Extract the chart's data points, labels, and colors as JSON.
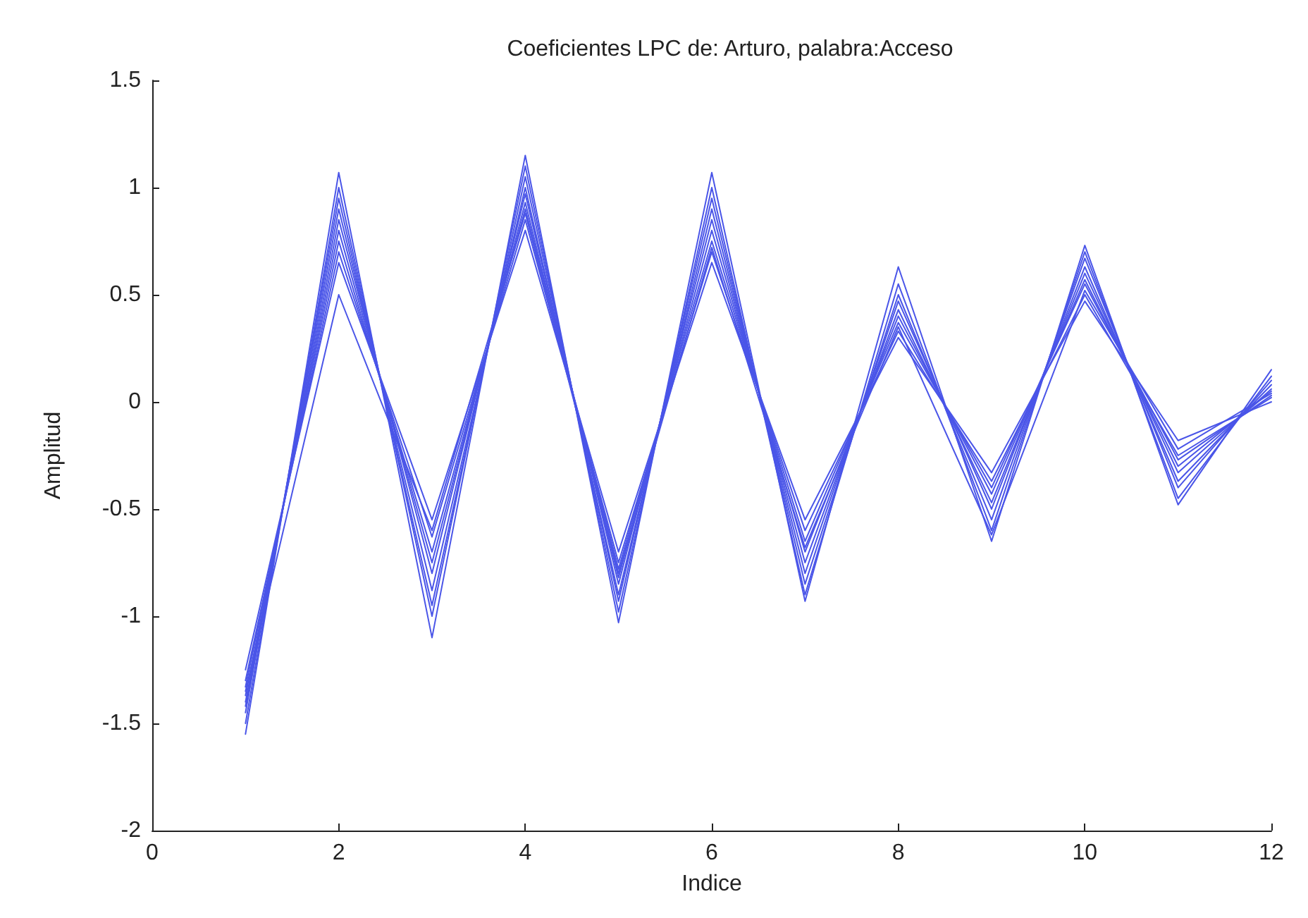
{
  "chart_data": {
    "type": "line",
    "title": "Coeficientes LPC de: Arturo, palabra:Acceso",
    "xlabel": "Indice",
    "ylabel": "Amplitud",
    "x": [
      1,
      2,
      3,
      4,
      5,
      6,
      7,
      8,
      9,
      10,
      11,
      12
    ],
    "xlim": [
      0,
      12
    ],
    "xticks": [
      0,
      2,
      4,
      6,
      8,
      10,
      12
    ],
    "ylim": [
      -2,
      1.5
    ],
    "yticks": [
      -2,
      -1.5,
      -1,
      -0.5,
      0,
      0.5,
      1,
      1.5
    ],
    "grid": false,
    "marker": "none",
    "line_style": "solid",
    "series": [
      {
        "color": "#4a55e8",
        "values": [
          -1.55,
          1.07,
          -1.1,
          1.15,
          -1.03,
          1.07,
          -0.93,
          0.63,
          -0.65,
          0.73,
          -0.48,
          0.15
        ]
      },
      {
        "color": "#4a55e8",
        "values": [
          -1.5,
          1.0,
          -1.0,
          1.1,
          -0.98,
          1.0,
          -0.9,
          0.55,
          -0.6,
          0.7,
          -0.45,
          0.12
        ]
      },
      {
        "color": "#4a55e8",
        "values": [
          -1.45,
          0.95,
          -0.95,
          1.05,
          -0.93,
          0.95,
          -0.85,
          0.5,
          -0.55,
          0.67,
          -0.4,
          0.1
        ]
      },
      {
        "color": "#4a55e8",
        "values": [
          -1.42,
          0.9,
          -0.88,
          1.0,
          -0.9,
          0.9,
          -0.8,
          0.47,
          -0.5,
          0.63,
          -0.37,
          0.08
        ]
      },
      {
        "color": "#4a55e8",
        "values": [
          -1.4,
          0.85,
          -0.8,
          0.97,
          -0.85,
          0.85,
          -0.75,
          0.43,
          -0.47,
          0.6,
          -0.33,
          0.06
        ]
      },
      {
        "color": "#4a55e8",
        "values": [
          -1.37,
          0.8,
          -0.75,
          0.93,
          -0.82,
          0.8,
          -0.7,
          0.4,
          -0.43,
          0.57,
          -0.3,
          0.05
        ]
      },
      {
        "color": "#4a55e8",
        "values": [
          -1.33,
          0.75,
          -0.7,
          0.9,
          -0.78,
          0.75,
          -0.65,
          0.37,
          -0.4,
          0.55,
          -0.27,
          0.03
        ]
      },
      {
        "color": "#4a55e8",
        "values": [
          -1.3,
          0.7,
          -0.63,
          0.85,
          -0.75,
          0.7,
          -0.6,
          0.33,
          -0.37,
          0.5,
          -0.25,
          0.02
        ]
      },
      {
        "color": "#4a55e8",
        "values": [
          -1.25,
          0.65,
          -0.55,
          0.8,
          -0.7,
          0.65,
          -0.55,
          0.3,
          -0.33,
          0.47,
          -0.18,
          0.0
        ]
      },
      {
        "color": "#4a55e8",
        "values": [
          -1.35,
          0.5,
          -0.6,
          0.88,
          -0.8,
          0.72,
          -0.68,
          0.35,
          -0.62,
          0.52,
          -0.22,
          0.04
        ]
      }
    ]
  }
}
